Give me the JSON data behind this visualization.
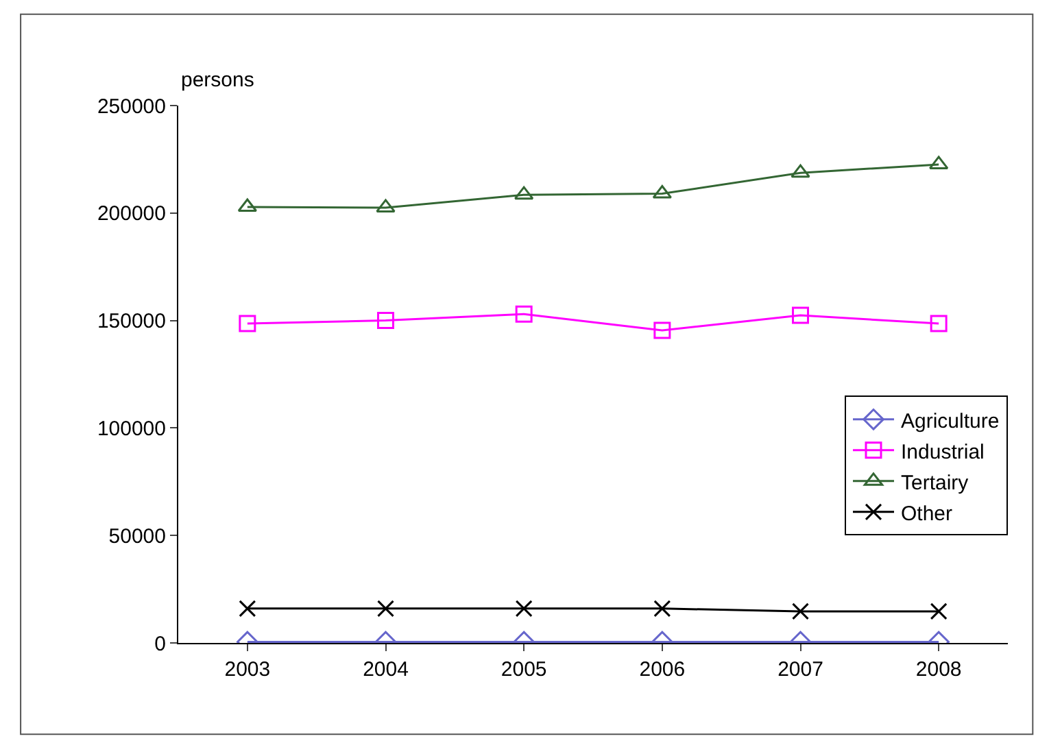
{
  "chart_data": {
    "type": "line",
    "ylabel": "persons",
    "categories": [
      "2003",
      "2004",
      "2005",
      "2006",
      "2007",
      "2008"
    ],
    "series": [
      {
        "name": "Agriculture",
        "color": "#6666cc",
        "marker": "diamond",
        "values": [
          500,
          500,
          500,
          500,
          500,
          500
        ]
      },
      {
        "name": "Industrial",
        "color": "#ff00ff",
        "marker": "square",
        "values": [
          148600,
          150000,
          153000,
          145400,
          152400,
          148600
        ]
      },
      {
        "name": "Tertairy",
        "color": "#336633",
        "marker": "triangle",
        "values": [
          202800,
          202500,
          208500,
          209000,
          218700,
          222600
        ]
      },
      {
        "name": "Other",
        "color": "#000000",
        "marker": "cross",
        "values": [
          16000,
          16000,
          16000,
          16000,
          14700,
          14700
        ]
      }
    ],
    "ylim": [
      0,
      250000
    ],
    "yticks": [
      0,
      50000,
      100000,
      150000,
      200000,
      250000
    ],
    "grid": false,
    "legend": "right"
  }
}
